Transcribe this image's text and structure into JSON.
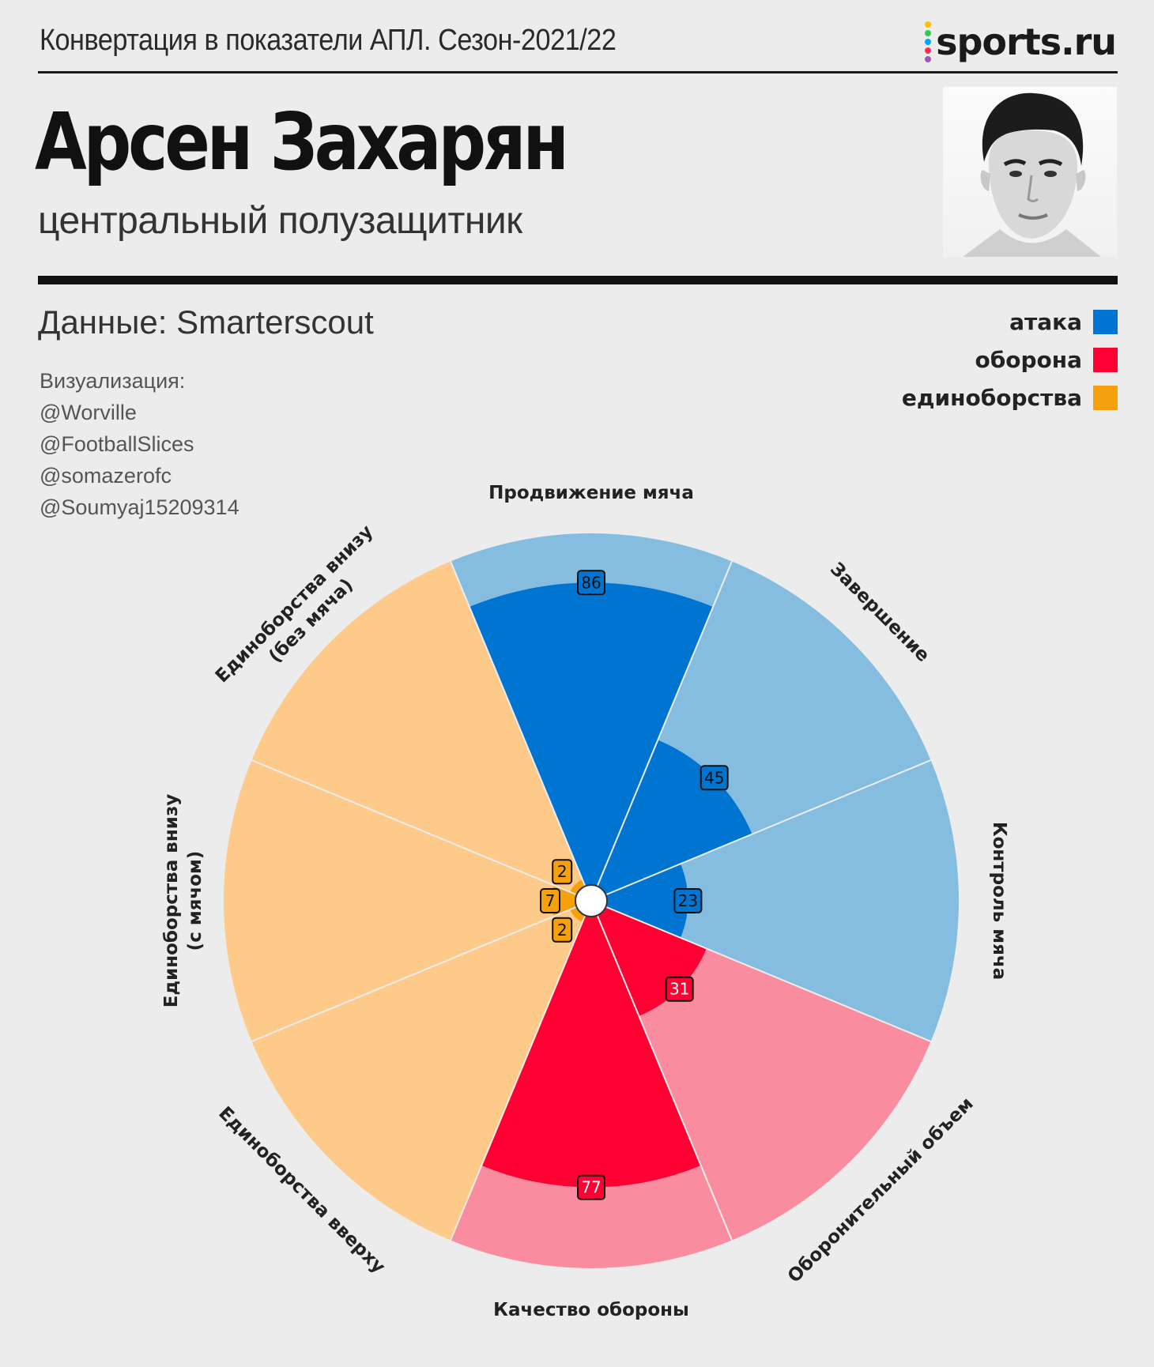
{
  "header": {
    "kicker": "Конвертация в показатели АПЛ. Сезон-2021/22",
    "logo_text": "sports.ru",
    "player_name": "Арсен Захарян",
    "player_position": "центральный полузащитник"
  },
  "source": {
    "data_label": "Данные: Smarterscout",
    "credits_title": "Визуализация:",
    "credits": [
      "@Worville",
      "@FootballSlices",
      "@somazerofc",
      "@Soumyaj15209314"
    ]
  },
  "legend": [
    {
      "label": "атака",
      "color": "#0074d1"
    },
    {
      "label": "оборона",
      "color": "#ff0033"
    },
    {
      "label": "единоборства",
      "color": "#f5a00c"
    }
  ],
  "colors": {
    "attack_dark": "#0074d1",
    "attack_light": "#85bde0",
    "defense_dark": "#ff0033",
    "defense_light": "#f98d9f",
    "duels_dark": "#f5a00c",
    "duels_light": "#fdca8a",
    "background": "#ececec"
  },
  "chart_data": {
    "type": "polar-area",
    "scale": [
      0,
      100
    ],
    "categories": [
      {
        "name": "Продвижение мяча",
        "group": "атака",
        "value": 86
      },
      {
        "name": "Завершение",
        "group": "атака",
        "value": 45
      },
      {
        "name": "Контроль мяча",
        "group": "атака",
        "value": 23
      },
      {
        "name": "Оборонительный объем",
        "group": "оборона",
        "value": 31
      },
      {
        "name": "Качество обороны",
        "group": "оборона",
        "value": 77
      },
      {
        "name": "Единоборства вверху",
        "group": "единоборства",
        "value": 2
      },
      {
        "name": "Единоборства внизу (с мячом)",
        "group": "единоборства",
        "value": 7
      },
      {
        "name": "Единоборства внизу (без мяча)",
        "group": "единоборства",
        "value": 2
      }
    ],
    "labels": [
      [
        "Продвижение мяча"
      ],
      [
        "Завершение"
      ],
      [
        "Контроль мяча"
      ],
      [
        "Оборонительный объем"
      ],
      [
        "Качество обороны"
      ],
      [
        "Единоборства вверху"
      ],
      [
        "Единоборства внизу",
        "(с мячом)"
      ],
      [
        "Единоборства внизу",
        "(без мяча)"
      ]
    ]
  }
}
